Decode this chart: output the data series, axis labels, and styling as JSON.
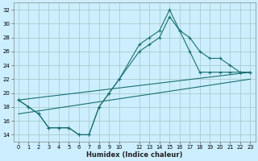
{
  "xlabel": "Humidex (Indice chaleur)",
  "bg_color": "#cceeff",
  "grid_color": "#aacccc",
  "line_color": "#1a7070",
  "xlim": [
    -0.5,
    23.5
  ],
  "ylim": [
    13,
    33
  ],
  "xtick_vals": [
    0,
    1,
    2,
    3,
    4,
    5,
    6,
    7,
    8,
    9,
    10,
    12,
    13,
    14,
    15,
    16,
    17,
    18,
    19,
    20,
    21,
    22,
    23
  ],
  "ytick_vals": [
    14,
    16,
    18,
    20,
    22,
    24,
    26,
    28,
    30,
    32
  ],
  "line1_x": [
    0,
    1,
    2,
    3,
    4,
    5,
    6,
    7,
    8,
    9,
    10,
    12,
    13,
    14,
    15,
    16,
    17,
    18,
    19,
    20,
    21,
    22,
    23
  ],
  "line1_y": [
    19,
    18,
    17,
    15,
    15,
    15,
    14,
    14,
    18,
    20,
    22,
    27,
    28,
    29,
    32,
    29,
    26,
    23,
    23,
    23,
    23,
    23,
    23
  ],
  "line2_x": [
    0,
    1,
    2,
    3,
    4,
    5,
    6,
    7,
    8,
    9,
    10,
    12,
    13,
    14,
    15,
    16,
    17,
    18,
    19,
    20,
    21,
    22,
    23
  ],
  "line2_y": [
    19,
    18,
    17,
    15,
    15,
    15,
    14,
    14,
    18,
    20,
    22,
    26,
    27,
    28,
    31,
    29,
    28,
    26,
    25,
    25,
    24,
    23,
    23
  ],
  "line3_x": [
    0,
    23
  ],
  "line3_y": [
    19,
    23
  ],
  "line4_x": [
    0,
    23
  ],
  "line4_y": [
    17,
    22
  ]
}
